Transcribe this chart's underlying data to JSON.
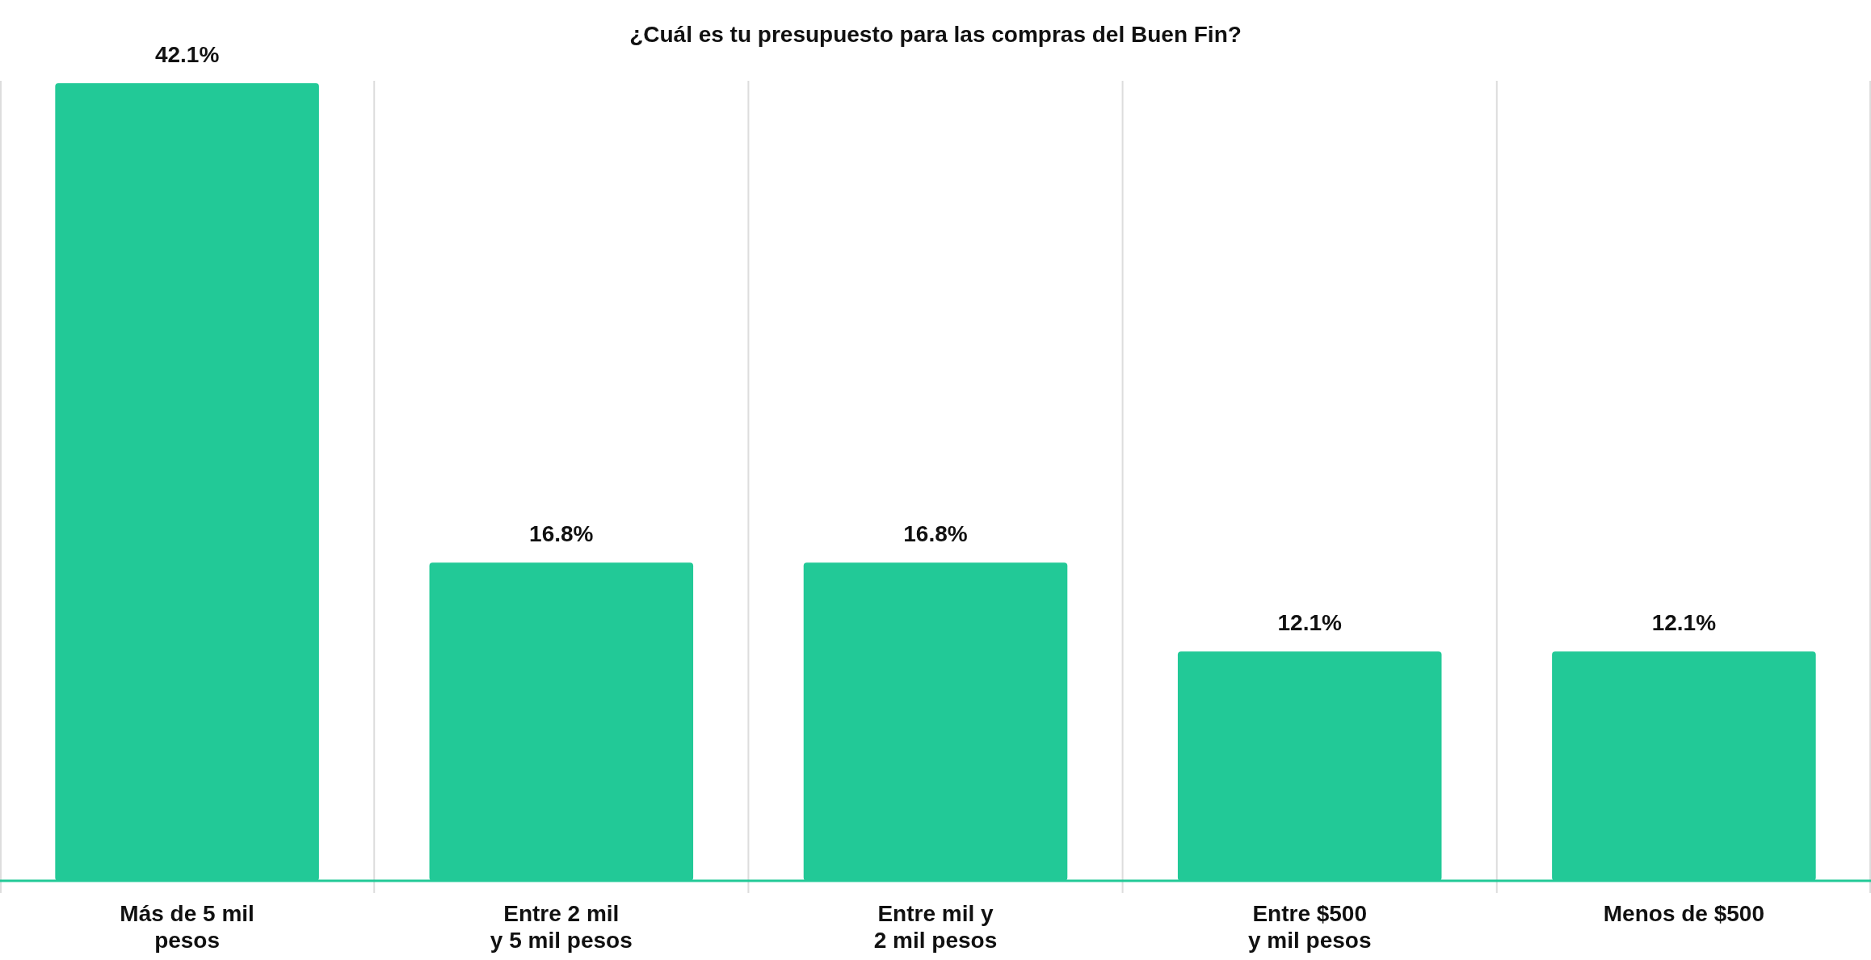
{
  "chart_data": {
    "type": "bar",
    "title": "¿Cuál es tu presupuesto para las compras del Buen Fin?",
    "categories": [
      "Más de 5 mil\npesos",
      "Entre 2 mil\ny 5 mil pesos",
      "Entre mil y\n2 mil pesos",
      "Entre $500\ny mil pesos",
      "Menos de $500"
    ],
    "values": [
      42.1,
      16.8,
      16.8,
      12.1,
      12.1
    ],
    "value_labels": [
      "42.1%",
      "16.8%",
      "16.8%",
      "12.1%",
      "12.1%"
    ],
    "color": "#22c997",
    "grid": "x"
  }
}
